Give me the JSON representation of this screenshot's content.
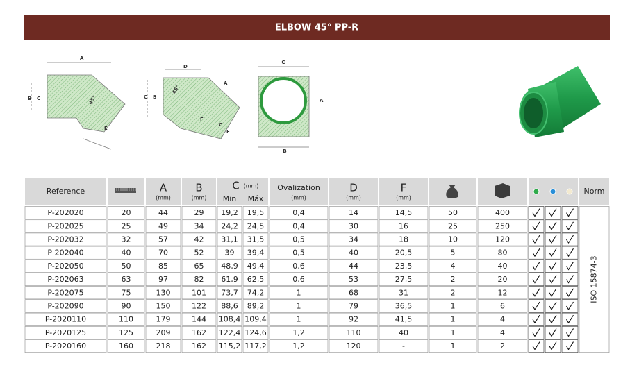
{
  "header": {
    "title": "ELBOW 45° PP-R"
  },
  "diagrams": [
    {
      "labels": [
        "A",
        "B",
        "C",
        "E",
        "45°"
      ]
    },
    {
      "labels": [
        "D",
        "A",
        "C",
        "B",
        "C",
        "F",
        "E",
        "45°"
      ]
    },
    {
      "labels": [
        "C",
        "A",
        "B"
      ]
    }
  ],
  "table": {
    "header": {
      "reference": "Reference",
      "a": "A",
      "a_unit": "(mm)",
      "b": "B",
      "b_unit": "(mm)",
      "c": "C",
      "c_unit": "(mm)",
      "c_min": "Min",
      "c_max": "Máx",
      "ovalization": "Ovalization",
      "ovalization_unit": "(mm)",
      "d": "D",
      "d_unit": "(mm)",
      "f": "F",
      "f_unit": "(mm)",
      "norm": "Norm"
    },
    "rows": [
      [
        "P-202020",
        "20",
        "44",
        "29",
        "19,2",
        "19,5",
        "0,4",
        "14",
        "14,5",
        "50",
        "400"
      ],
      [
        "P-202025",
        "25",
        "49",
        "34",
        "24,2",
        "24,5",
        "0,4",
        "30",
        "16",
        "25",
        "250"
      ],
      [
        "P-202032",
        "32",
        "57",
        "42",
        "31,1",
        "31,5",
        "0,5",
        "34",
        "18",
        "10",
        "120"
      ],
      [
        "P-202040",
        "40",
        "70",
        "52",
        "39",
        "39,4",
        "0,5",
        "40",
        "20,5",
        "5",
        "80"
      ],
      [
        "P-202050",
        "50",
        "85",
        "65",
        "48,9",
        "49,4",
        "0,6",
        "44",
        "23,5",
        "4",
        "40"
      ],
      [
        "P-202063",
        "63",
        "97",
        "82",
        "61,9",
        "62,5",
        "0,6",
        "53",
        "27,5",
        "2",
        "20"
      ],
      [
        "P-202075",
        "75",
        "130",
        "101",
        "73,7",
        "74,2",
        "1",
        "68",
        "31",
        "2",
        "12"
      ],
      [
        "P-202090",
        "90",
        "150",
        "122",
        "88,6",
        "89,2",
        "1",
        "79",
        "36,5",
        "1",
        "6"
      ],
      [
        "P-2020110",
        "110",
        "179",
        "144",
        "108,4",
        "109,4",
        "1",
        "92",
        "41,5",
        "1",
        "4"
      ],
      [
        "P-2020125",
        "125",
        "209",
        "162",
        "122,4",
        "124,6",
        "1,2",
        "110",
        "40",
        "1",
        "4"
      ],
      [
        "P-2020160",
        "160",
        "218",
        "162",
        "115,2",
        "117,2",
        "1,2",
        "120",
        "-",
        "1",
        "2"
      ]
    ],
    "norm": "ISO 15874-3"
  }
}
